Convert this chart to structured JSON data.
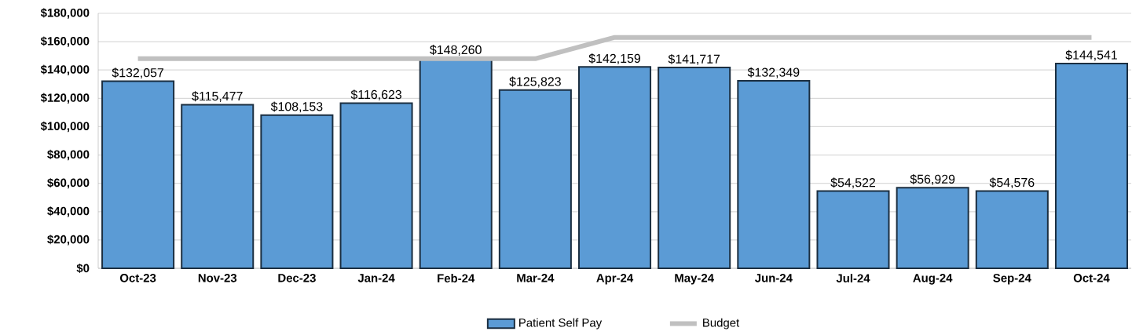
{
  "chart_data": {
    "type": "bar",
    "categories": [
      "Oct-23",
      "Nov-23",
      "Dec-23",
      "Jan-24",
      "Feb-24",
      "Mar-24",
      "Apr-24",
      "May-24",
      "Jun-24",
      "Jul-24",
      "Aug-24",
      "Sep-24",
      "Oct-24"
    ],
    "series": [
      {
        "name": "Patient Self Pay",
        "color": "#5b9bd5",
        "values": [
          132057,
          115477,
          108153,
          116623,
          148260,
          125823,
          142159,
          141717,
          132349,
          54522,
          56929,
          54576,
          144541
        ],
        "value_labels": [
          "$132,057",
          "$115,477",
          "$108,153",
          "$116,623",
          "$148,260",
          "$125,823",
          "$142,159",
          "$141,717",
          "$132,349",
          "$54,522",
          "$56,929",
          "$54,576",
          "$144,541"
        ]
      },
      {
        "name": "Budget",
        "type": "line",
        "color": "#c0c0c0",
        "values": [
          148000,
          148000,
          148000,
          148000,
          148000,
          148000,
          163000,
          163000,
          163000,
          163000,
          163000,
          163000,
          163000
        ]
      }
    ],
    "ylim": [
      0,
      180000
    ],
    "yticks": [
      {
        "value": 0,
        "label": "$0"
      },
      {
        "value": 20000,
        "label": "$20,000"
      },
      {
        "value": 40000,
        "label": "$40,000"
      },
      {
        "value": 60000,
        "label": "$60,000"
      },
      {
        "value": 80000,
        "label": "$80,000"
      },
      {
        "value": 100000,
        "label": "$100,000"
      },
      {
        "value": 120000,
        "label": "$120,000"
      },
      {
        "value": 140000,
        "label": "$140,000"
      },
      {
        "value": 160000,
        "label": "$160,000"
      },
      {
        "value": 180000,
        "label": "$180,000"
      }
    ],
    "grid": "y",
    "legend": "bottom",
    "marker": "none"
  }
}
